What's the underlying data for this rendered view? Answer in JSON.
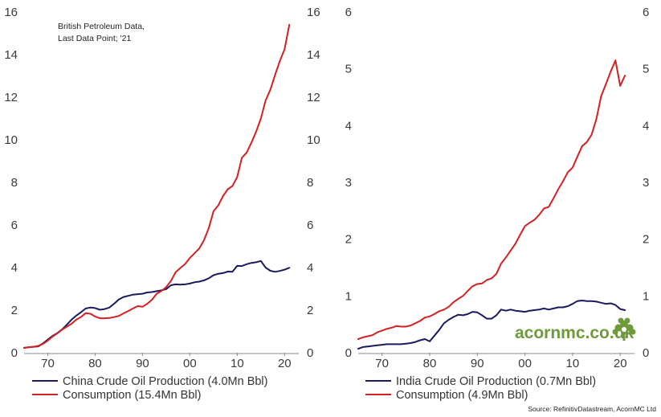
{
  "chart_data": [
    {
      "type": "line",
      "panel": "left",
      "title": "",
      "xlabel": "",
      "ylabel": "",
      "annotation": [
        "British Petroleum Data,",
        "Last Data Point; '21"
      ],
      "xlim": [
        1965,
        2023
      ],
      "ylim": [
        0,
        16
      ],
      "x_ticks": [
        1970,
        1980,
        1990,
        2000,
        2010,
        2020
      ],
      "x_tick_labels": [
        "70",
        "80",
        "90",
        "00",
        "10",
        "20"
      ],
      "y_ticks": [
        0,
        2,
        4,
        6,
        8,
        10,
        12,
        14,
        16
      ],
      "y_tick_labels": [
        "0",
        "2",
        "4",
        "6",
        "8",
        "10",
        "12",
        "14",
        "16"
      ],
      "x": [
        1965,
        1966,
        1967,
        1968,
        1969,
        1970,
        1971,
        1972,
        1973,
        1974,
        1975,
        1976,
        1977,
        1978,
        1979,
        1980,
        1981,
        1982,
        1983,
        1984,
        1985,
        1986,
        1987,
        1988,
        1989,
        1990,
        1991,
        1992,
        1993,
        1994,
        1995,
        1996,
        1997,
        1998,
        1999,
        2000,
        2001,
        2002,
        2003,
        2004,
        2005,
        2006,
        2007,
        2008,
        2009,
        2010,
        2011,
        2012,
        2013,
        2014,
        2015,
        2016,
        2017,
        2018,
        2019,
        2020,
        2021
      ],
      "series": [
        {
          "name": "China Crude Oil Production (4.0Mn Bbl)",
          "color": "#1a1a5e",
          "values": [
            0.23,
            0.26,
            0.28,
            0.3,
            0.44,
            0.62,
            0.79,
            0.92,
            1.09,
            1.31,
            1.55,
            1.74,
            1.9,
            2.08,
            2.12,
            2.1,
            2.02,
            2.05,
            2.12,
            2.3,
            2.5,
            2.62,
            2.67,
            2.73,
            2.75,
            2.77,
            2.83,
            2.85,
            2.89,
            2.93,
            2.99,
            3.17,
            3.21,
            3.2,
            3.21,
            3.25,
            3.31,
            3.34,
            3.4,
            3.5,
            3.64,
            3.71,
            3.74,
            3.81,
            3.8,
            4.08,
            4.07,
            4.16,
            4.22,
            4.25,
            4.31,
            4.0,
            3.85,
            3.8,
            3.84,
            3.9,
            3.99
          ]
        },
        {
          "name": "Consumption (15.4Mn Bbl)",
          "color": "#d42020",
          "values": [
            0.22,
            0.26,
            0.28,
            0.32,
            0.42,
            0.57,
            0.76,
            0.91,
            1.08,
            1.22,
            1.36,
            1.55,
            1.68,
            1.86,
            1.83,
            1.7,
            1.62,
            1.62,
            1.63,
            1.67,
            1.73,
            1.85,
            1.96,
            2.08,
            2.19,
            2.16,
            2.3,
            2.49,
            2.77,
            2.9,
            3.08,
            3.37,
            3.78,
            3.98,
            4.17,
            4.45,
            4.67,
            4.9,
            5.3,
            5.86,
            6.65,
            6.92,
            7.36,
            7.68,
            7.83,
            8.25,
            9.16,
            9.4,
            9.86,
            10.38,
            11.0,
            11.85,
            12.35,
            13.05,
            13.7,
            14.25,
            15.4
          ]
        }
      ],
      "legend": [
        "China Crude Oil Production (4.0Mn Bbl)",
        "Consumption (15.4Mn Bbl)"
      ],
      "legend_position": "bottom-left"
    },
    {
      "type": "line",
      "panel": "right",
      "title": "",
      "xlabel": "",
      "ylabel": "",
      "xlim": [
        1965,
        2023
      ],
      "ylim": [
        0,
        6
      ],
      "x_ticks": [
        1970,
        1980,
        1990,
        2000,
        2010,
        2020
      ],
      "x_tick_labels": [
        "70",
        "80",
        "90",
        "00",
        "10",
        "20"
      ],
      "y_ticks": [
        0,
        1,
        2,
        3,
        4,
        5,
        6
      ],
      "y_tick_labels": [
        "0",
        "1",
        "2",
        "3",
        "4",
        "5",
        "6"
      ],
      "x": [
        1965,
        1966,
        1967,
        1968,
        1969,
        1970,
        1971,
        1972,
        1973,
        1974,
        1975,
        1976,
        1977,
        1978,
        1979,
        1980,
        1981,
        1982,
        1983,
        1984,
        1985,
        1986,
        1987,
        1988,
        1989,
        1990,
        1991,
        1992,
        1993,
        1994,
        1995,
        1996,
        1997,
        1998,
        1999,
        2000,
        2001,
        2002,
        2003,
        2004,
        2005,
        2006,
        2007,
        2008,
        2009,
        2010,
        2011,
        2012,
        2013,
        2014,
        2015,
        2016,
        2017,
        2018,
        2019,
        2020,
        2021
      ],
      "series": [
        {
          "name": "India Crude Oil Production (0.7Mn Bbl)",
          "color": "#1a1a5e",
          "values": [
            0.07,
            0.1,
            0.11,
            0.12,
            0.13,
            0.14,
            0.15,
            0.15,
            0.15,
            0.15,
            0.16,
            0.17,
            0.19,
            0.22,
            0.24,
            0.2,
            0.3,
            0.4,
            0.52,
            0.58,
            0.63,
            0.67,
            0.66,
            0.68,
            0.72,
            0.71,
            0.66,
            0.6,
            0.6,
            0.66,
            0.76,
            0.74,
            0.76,
            0.74,
            0.73,
            0.72,
            0.74,
            0.75,
            0.76,
            0.78,
            0.76,
            0.78,
            0.8,
            0.8,
            0.82,
            0.86,
            0.91,
            0.92,
            0.91,
            0.91,
            0.9,
            0.88,
            0.86,
            0.87,
            0.84,
            0.77,
            0.75
          ]
        },
        {
          "name": "Consumption (4.9Mn Bbl)",
          "color": "#d42020",
          "values": [
            0.24,
            0.27,
            0.29,
            0.31,
            0.36,
            0.39,
            0.42,
            0.44,
            0.47,
            0.46,
            0.46,
            0.48,
            0.52,
            0.56,
            0.62,
            0.64,
            0.68,
            0.73,
            0.76,
            0.81,
            0.89,
            0.95,
            1.0,
            1.09,
            1.17,
            1.21,
            1.22,
            1.28,
            1.31,
            1.39,
            1.57,
            1.68,
            1.8,
            1.92,
            2.08,
            2.23,
            2.29,
            2.34,
            2.43,
            2.54,
            2.57,
            2.72,
            2.88,
            3.02,
            3.18,
            3.26,
            3.45,
            3.64,
            3.71,
            3.84,
            4.12,
            4.52,
            4.73,
            4.95,
            5.15,
            4.7,
            4.88
          ]
        }
      ],
      "legend": [
        "India Crude Oil Production (0.7Mn Bbl)",
        "Consumption (4.9Mn Bbl)"
      ],
      "legend_position": "bottom-left"
    }
  ],
  "watermark": "acornmc.co.uk",
  "source": "Source: RefinitivDatastream, AcornMC Ltd",
  "colors": {
    "production": "#1a1a5e",
    "consumption": "#d42020",
    "brand": "#6f9a3b"
  }
}
